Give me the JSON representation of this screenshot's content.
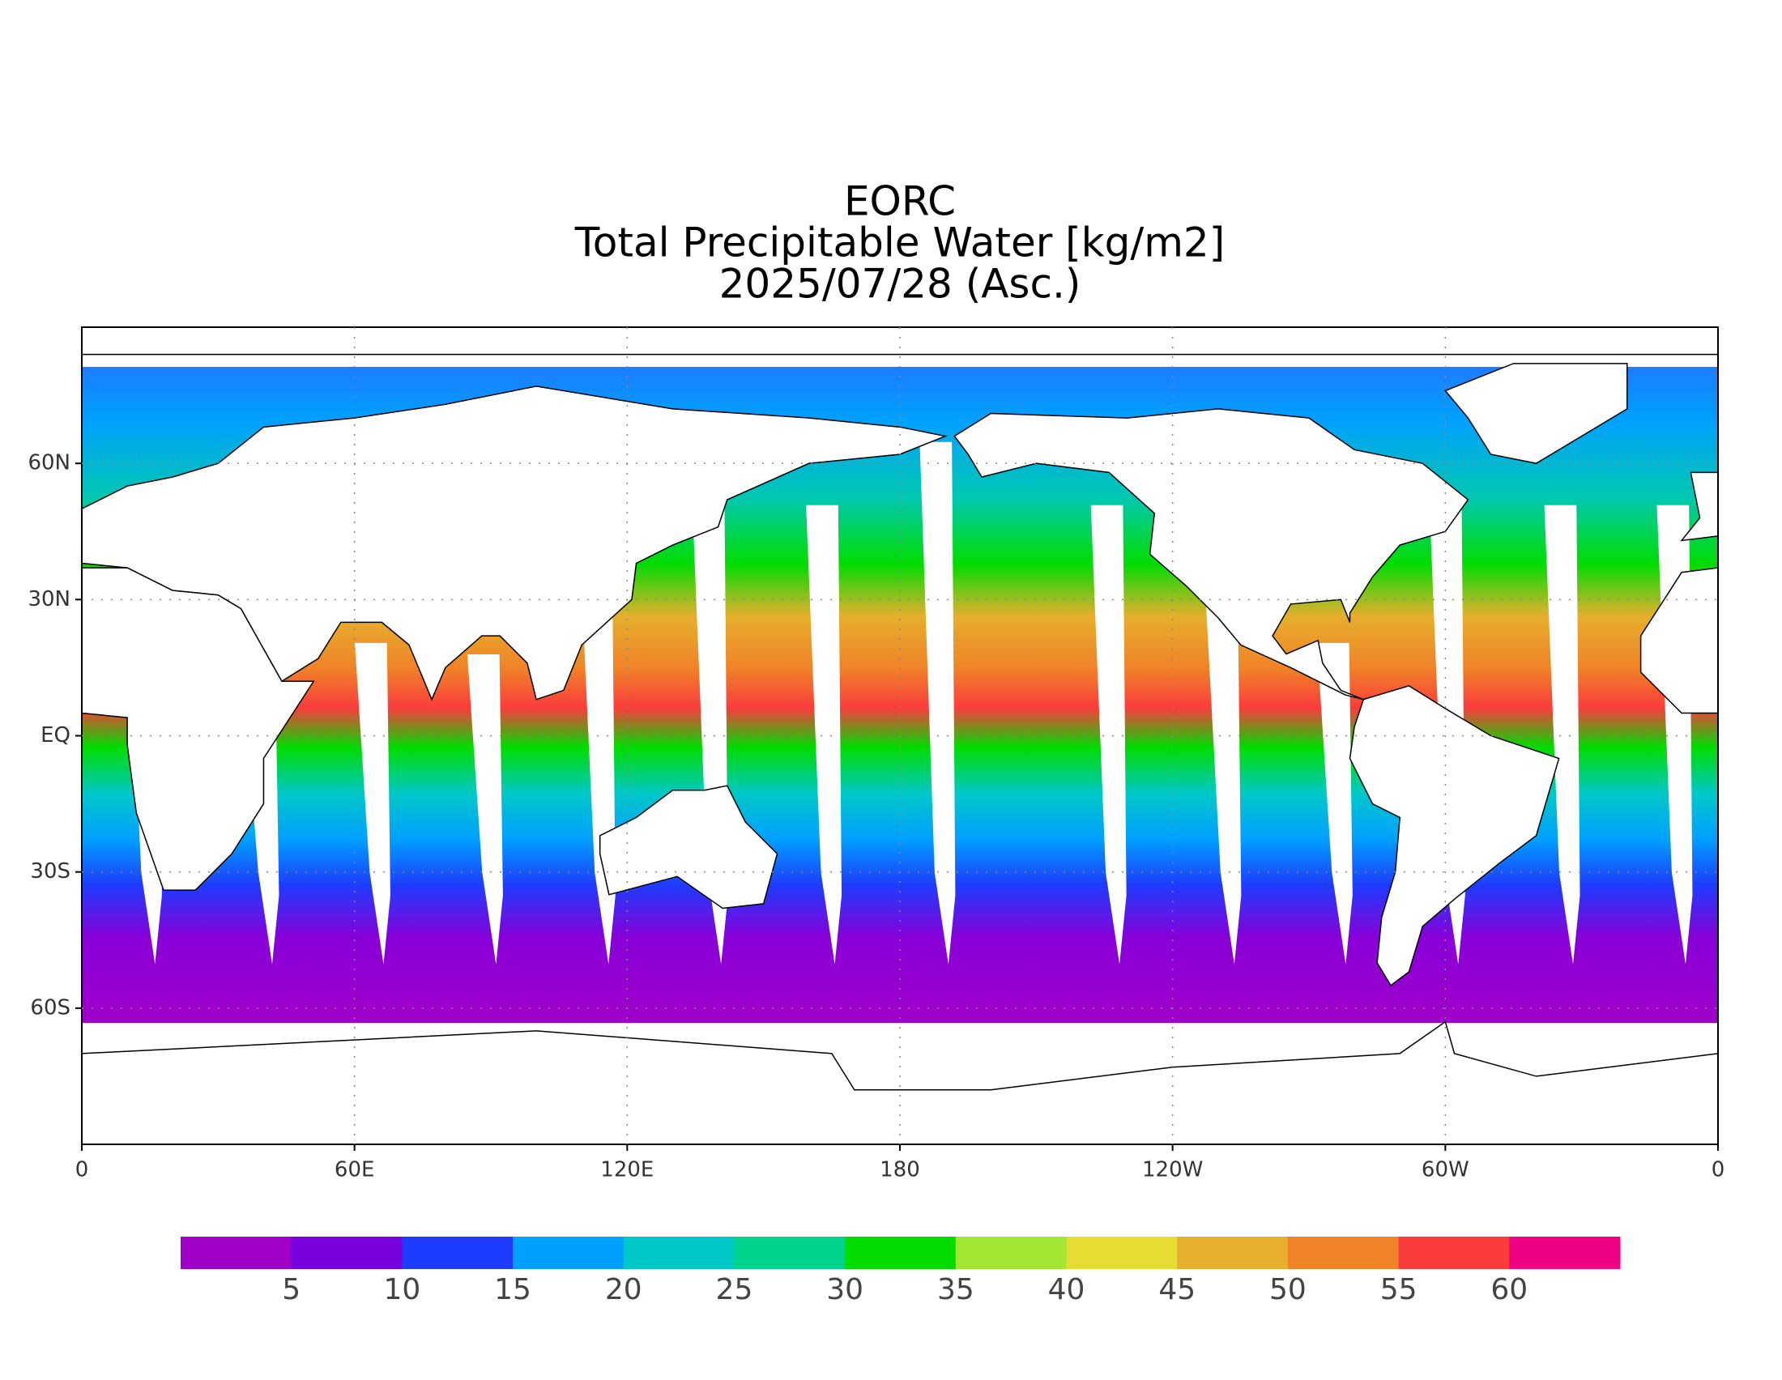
{
  "title_lines": [
    "EORC",
    "Total Precipitable Water [kg/m2]",
    "2025/07/28 (Asc.)"
  ],
  "map": {
    "lat_labels": [
      "60N",
      "30N",
      "EQ",
      "30S",
      "60S"
    ],
    "lon_labels": [
      "0",
      "60E",
      "120E",
      "180",
      "120W",
      "60W",
      "0"
    ]
  },
  "colorbar": {
    "colors": [
      "#a000c8",
      "#7800dc",
      "#1e3cff",
      "#00a0ff",
      "#00c8c8",
      "#00d28c",
      "#00dc00",
      "#a0e632",
      "#e6dc32",
      "#e6af2d",
      "#f08228",
      "#fa3c3c",
      "#f00082"
    ],
    "labels": [
      5,
      10,
      15,
      20,
      25,
      30,
      35,
      40,
      45,
      50,
      55,
      60
    ]
  }
}
